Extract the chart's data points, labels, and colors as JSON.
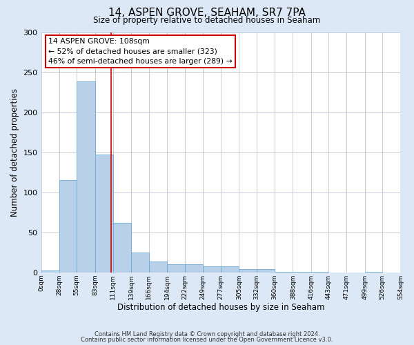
{
  "title": "14, ASPEN GROVE, SEAHAM, SR7 7PA",
  "subtitle": "Size of property relative to detached houses in Seaham",
  "xlabel": "Distribution of detached houses by size in Seaham",
  "ylabel": "Number of detached properties",
  "bin_edges": [
    0,
    28,
    55,
    83,
    111,
    139,
    166,
    194,
    222,
    249,
    277,
    305,
    332,
    360,
    388,
    416,
    443,
    471,
    499,
    526,
    554
  ],
  "bar_heights": [
    2,
    115,
    238,
    147,
    62,
    25,
    14,
    10,
    10,
    8,
    8,
    4,
    4,
    1,
    1,
    1,
    0,
    0,
    1,
    0
  ],
  "tick_labels": [
    "0sqm",
    "28sqm",
    "55sqm",
    "83sqm",
    "111sqm",
    "139sqm",
    "166sqm",
    "194sqm",
    "222sqm",
    "249sqm",
    "277sqm",
    "305sqm",
    "332sqm",
    "360sqm",
    "388sqm",
    "416sqm",
    "443sqm",
    "471sqm",
    "499sqm",
    "526sqm",
    "554sqm"
  ],
  "bar_color": "#b8d0e8",
  "bar_edge_color": "#6aaad4",
  "property_line_x": 108,
  "property_line_color": "#cc0000",
  "annotation_text_line1": "14 ASPEN GROVE: 108sqm",
  "annotation_text_line2": "← 52% of detached houses are smaller (323)",
  "annotation_text_line3": "46% of semi-detached houses are larger (289) →",
  "annotation_box_color": "#ffffff",
  "annotation_box_edge": "#cc0000",
  "ylim": [
    0,
    300
  ],
  "yticks": [
    0,
    50,
    100,
    150,
    200,
    250,
    300
  ],
  "footnote1": "Contains HM Land Registry data © Crown copyright and database right 2024.",
  "footnote2": "Contains public sector information licensed under the Open Government Licence v3.0.",
  "background_color": "#dce8f5",
  "plot_background": "#ffffff",
  "grid_color": "#b0b8cc"
}
